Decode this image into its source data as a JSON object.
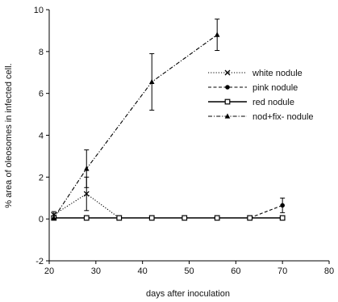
{
  "chart_data": {
    "type": "line",
    "xlabel": "days after inoculation",
    "ylabel": "% area of oleosomes in infected cell.",
    "xlim": [
      20,
      80
    ],
    "ylim": [
      -2,
      10
    ],
    "xticks": [
      20,
      30,
      40,
      50,
      60,
      70,
      80
    ],
    "yticks": [
      -2,
      0,
      2,
      4,
      6,
      8,
      10
    ],
    "legend_position": "upper-right",
    "series": [
      {
        "name": "white nodule",
        "marker": "x",
        "dash": "dotted",
        "x": [
          21,
          28,
          35
        ],
        "y": [
          0.2,
          1.2,
          0.05
        ],
        "err": [
          0.15,
          0.8,
          0
        ]
      },
      {
        "name": "pink nodule",
        "marker": "circle",
        "dash": "dashed",
        "x": [
          63,
          70
        ],
        "y": [
          0.05,
          0.65
        ],
        "err": [
          0,
          0.35
        ]
      },
      {
        "name": "red nodule",
        "marker": "square",
        "dash": "solid",
        "x": [
          21,
          28,
          35,
          42,
          49,
          56,
          63,
          70
        ],
        "y": [
          0.05,
          0.05,
          0.05,
          0.05,
          0.05,
          0.05,
          0.05,
          0.05
        ],
        "err": [
          0,
          0,
          0,
          0,
          0,
          0,
          0,
          0
        ]
      },
      {
        "name": "nod+fix-  nodule",
        "marker": "triangle",
        "dash": "dashdot",
        "x": [
          21,
          28,
          42,
          56
        ],
        "y": [
          0.05,
          2.4,
          6.55,
          8.8
        ],
        "err": [
          0,
          0.9,
          1.35,
          0.75
        ]
      }
    ]
  }
}
